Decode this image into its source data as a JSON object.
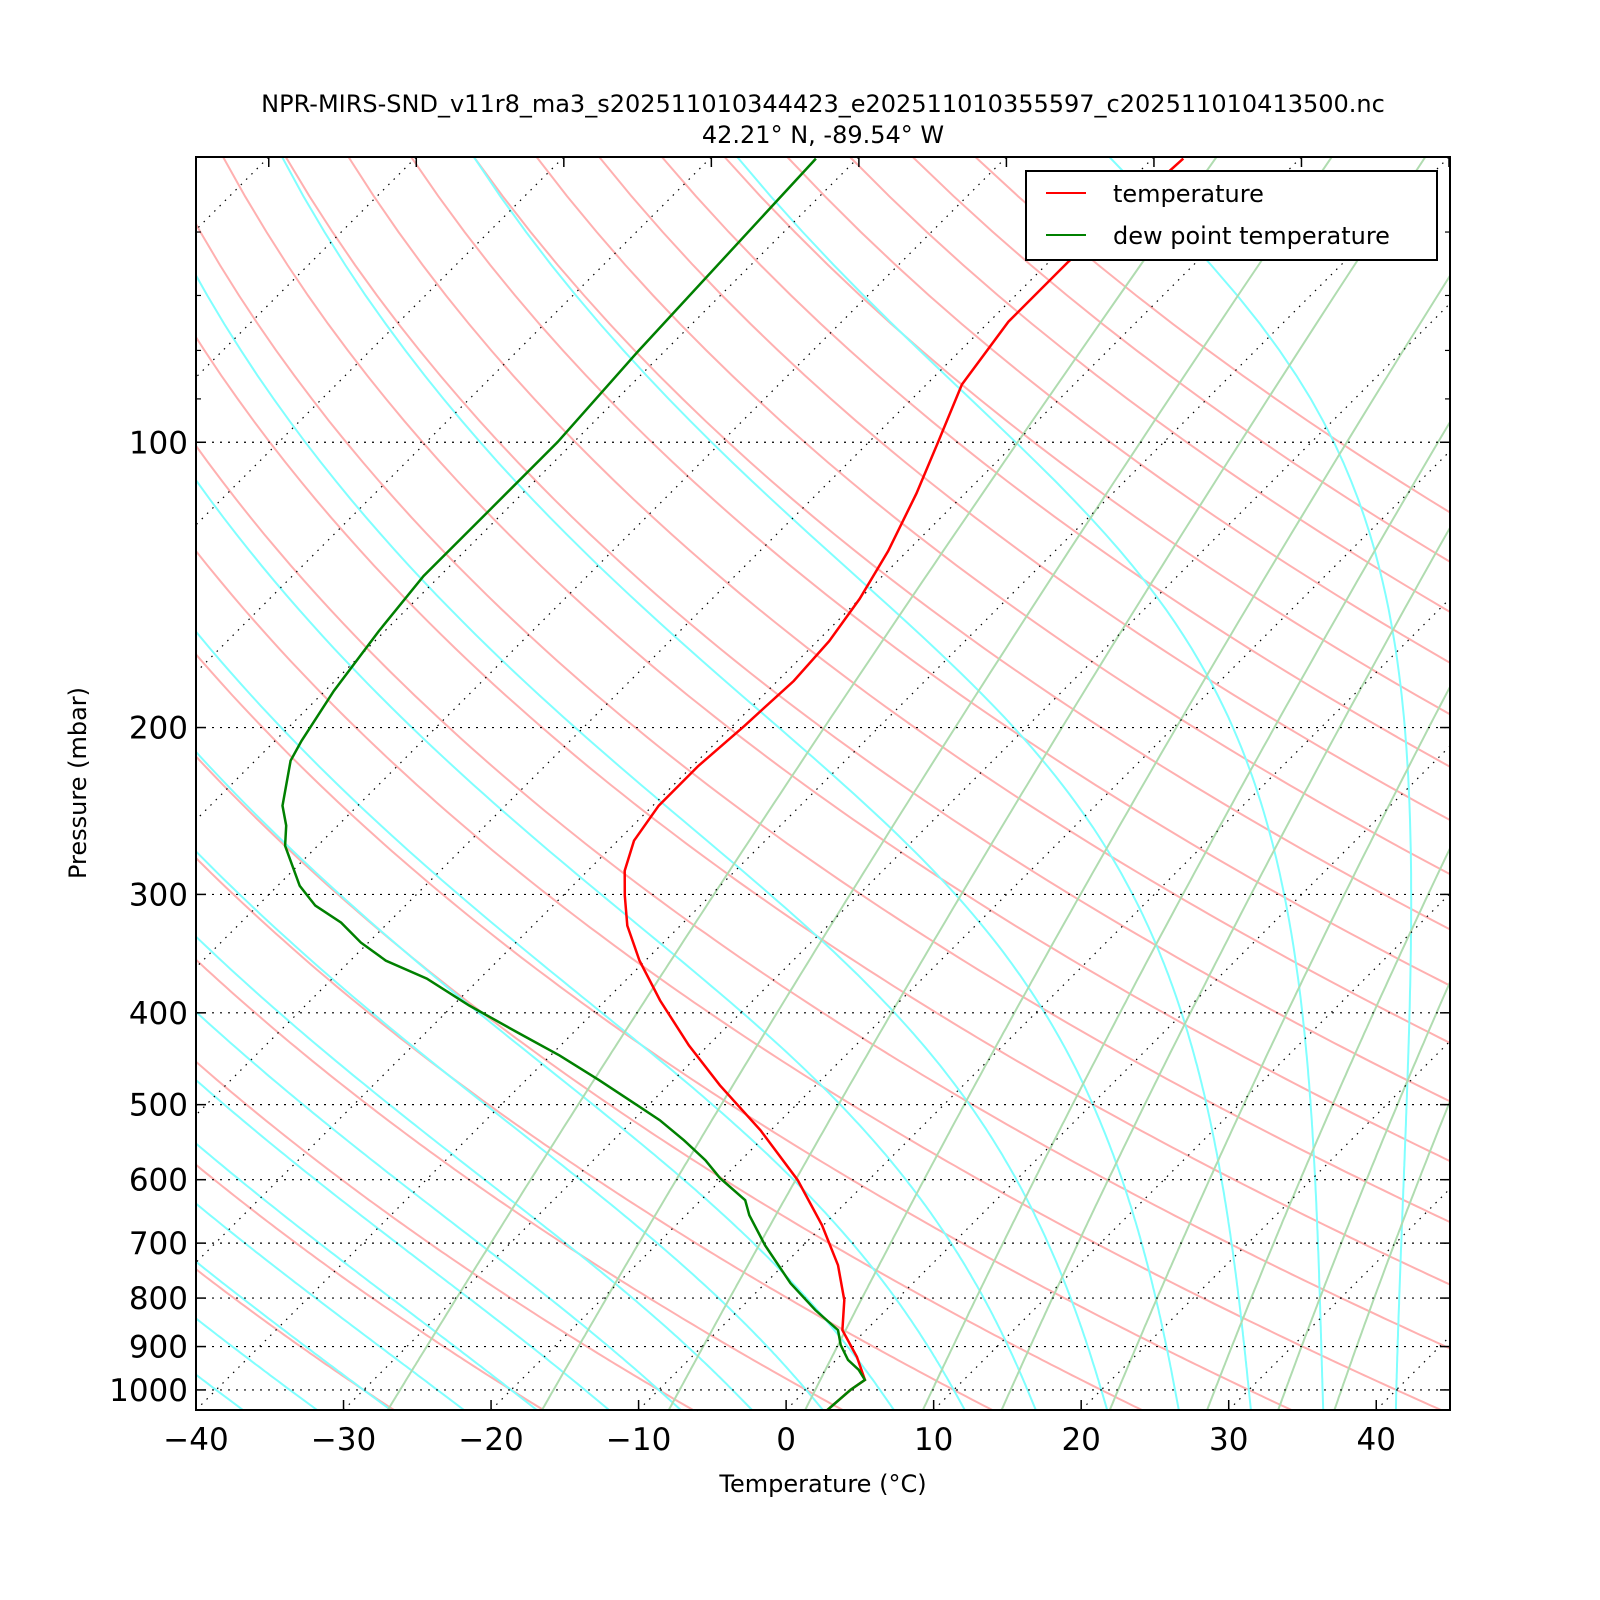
{
  "chart_data": {
    "type": "line",
    "subtype": "skew-T log-p",
    "title": "NPR-MIRS-SND_v11r8_ma3_s202511010344423_e202511010355597_c202511010413500.nc",
    "subtitle": "42.21$^\\circ$N, -89.54$^\\circ$W",
    "subtitle_display": "42.21° N, -89.54° W",
    "xlabel": "Temperature (°C)",
    "ylabel": "Pressure (mbar)",
    "xlim": [
      -40,
      45
    ],
    "ylim": [
      1050,
      50
    ],
    "xticks": [
      -40,
      -30,
      -20,
      -10,
      0,
      10,
      20,
      30,
      40
    ],
    "xtick_labels": [
      "−40",
      "−30",
      "−20",
      "−10",
      "0",
      "10",
      "20",
      "30",
      "40"
    ],
    "yticks": [
      100,
      200,
      300,
      400,
      500,
      600,
      700,
      800,
      900,
      1000
    ],
    "ytick_labels": [
      "100",
      "200",
      "300",
      "400",
      "500",
      "600",
      "700",
      "800",
      "900",
      "1000"
    ],
    "yminor_ticks": [
      60,
      70,
      80,
      90
    ],
    "skew_deg": 45,
    "legend": {
      "placement": "top-right",
      "entries": [
        "temperature",
        "dew point temperature"
      ]
    },
    "colors": {
      "temperature": "#ff0000",
      "dewpoint": "#008000",
      "dry_adiabat": "#ffb0b0",
      "moist_adiabat": "#80ffff",
      "mixing_ratio": "#b0dcb0"
    },
    "series": [
      {
        "name": "temperature",
        "p": [
          50.2,
          64.5,
          74.6,
          86.9,
          100,
          113.2,
          130.3,
          146.3,
          162.1,
          178.6,
          199.2,
          219.5,
          241.8,
          263.3,
          283.2,
          300.9,
          323.6,
          352.3,
          388.2,
          433,
          477,
          532.1,
          600.6,
          670.1,
          738.5,
          804,
          864.7,
          922.9,
          975.9,
          1000,
          1050
        ],
        "T": [
          -57.9,
          -58.7,
          -58.7,
          -57.6,
          -55.3,
          -53.3,
          -51.3,
          -50.0,
          -49.2,
          -48.9,
          -49.2,
          -49.6,
          -49.6,
          -48.9,
          -47.5,
          -45.8,
          -43.6,
          -40.4,
          -36.3,
          -31.3,
          -26.5,
          -20.7,
          -14.8,
          -10.1,
          -6.3,
          -3.5,
          -1.6,
          1.2,
          3.3,
          3.0,
          2.8
        ]
      },
      {
        "name": "dew point temperature",
        "p": [
          50.2,
          80.2,
          100,
          118.2,
          138.4,
          158.2,
          183,
          206.6,
          216.8,
          241.8,
          253.8,
          266.6,
          293.8,
          308.3,
          321.3,
          337.3,
          352.3,
          368.1,
          393,
          420.6,
          443.6,
          471.3,
          498.3,
          519.3,
          545.3,
          572.3,
          597.7,
          630.6,
          654,
          703.6,
          771.6,
          823.6,
          864.7,
          896.7,
          929.7,
          952.4,
          975.9,
          1000,
          1050
        ],
        "T": [
          -82.8,
          -81.8,
          -81.1,
          -81.1,
          -81.1,
          -80.4,
          -79.4,
          -78.2,
          -77.6,
          -75.1,
          -73.5,
          -72.2,
          -68.5,
          -66.1,
          -63.2,
          -60.5,
          -57.6,
          -53.6,
          -48.9,
          -43.6,
          -39.4,
          -35.0,
          -31.1,
          -28.2,
          -25.2,
          -22.4,
          -20.2,
          -17.0,
          -15.7,
          -12.6,
          -8.3,
          -4.8,
          -1.9,
          -0.7,
          0.8,
          2.2,
          3.3,
          3.0,
          2.8
        ]
      }
    ]
  }
}
